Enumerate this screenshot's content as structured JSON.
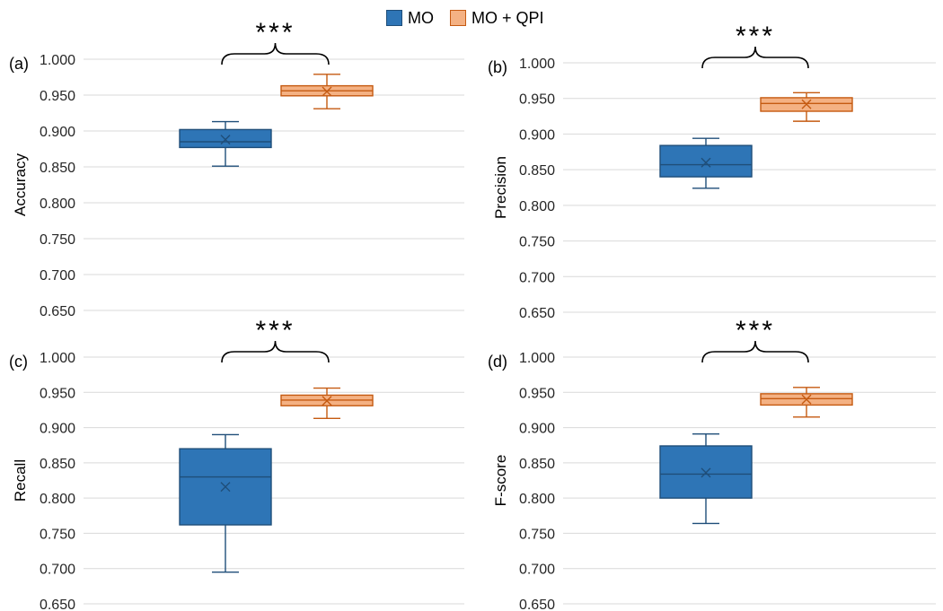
{
  "legend": {
    "items": [
      {
        "label": "MO",
        "fill": "#2E75B6",
        "stroke": "#1F4E79"
      },
      {
        "label": "MO + QPI",
        "fill": "#F4B183",
        "stroke": "#C55A11"
      }
    ]
  },
  "chart_data": [
    {
      "type": "box",
      "panel_label": "(a)",
      "ylabel": "Accuracy",
      "ylim": [
        0.65,
        1.0
      ],
      "yticks": [
        "0.650",
        "0.700",
        "0.750",
        "0.800",
        "0.850",
        "0.900",
        "0.950",
        "1.000"
      ],
      "grid": true,
      "significance": "***",
      "series": [
        {
          "name": "MO",
          "min": 0.851,
          "q1": 0.877,
          "median": 0.885,
          "q3": 0.902,
          "max": 0.913,
          "mean": 0.888
        },
        {
          "name": "MO + QPI",
          "min": 0.931,
          "q1": 0.949,
          "median": 0.956,
          "q3": 0.963,
          "max": 0.979,
          "mean": 0.955
        }
      ]
    },
    {
      "type": "box",
      "panel_label": "(b)",
      "ylabel": "Precision",
      "ylim": [
        0.65,
        1.0
      ],
      "yticks": [
        "0.650",
        "0.700",
        "0.750",
        "0.800",
        "0.850",
        "0.900",
        "0.950",
        "1.000"
      ],
      "grid": true,
      "significance": "***",
      "series": [
        {
          "name": "MO",
          "min": 0.824,
          "q1": 0.84,
          "median": 0.857,
          "q3": 0.884,
          "max": 0.894,
          "mean": 0.86
        },
        {
          "name": "MO + QPI",
          "min": 0.918,
          "q1": 0.932,
          "median": 0.943,
          "q3": 0.951,
          "max": 0.958,
          "mean": 0.942
        }
      ]
    },
    {
      "type": "box",
      "panel_label": "(c)",
      "ylabel": "Recall",
      "ylim": [
        0.65,
        1.0
      ],
      "yticks": [
        "0.650",
        "0.700",
        "0.750",
        "0.800",
        "0.850",
        "0.900",
        "0.950",
        "1.000"
      ],
      "grid": true,
      "significance": "***",
      "series": [
        {
          "name": "MO",
          "min": 0.695,
          "q1": 0.762,
          "median": 0.83,
          "q3": 0.87,
          "max": 0.89,
          "mean": 0.816
        },
        {
          "name": "MO + QPI",
          "min": 0.913,
          "q1": 0.931,
          "median": 0.939,
          "q3": 0.946,
          "max": 0.956,
          "mean": 0.938
        }
      ]
    },
    {
      "type": "box",
      "panel_label": "(d)",
      "ylabel": "F-score",
      "ylim": [
        0.65,
        1.0
      ],
      "yticks": [
        "0.650",
        "0.700",
        "0.750",
        "0.800",
        "0.850",
        "0.900",
        "0.950",
        "1.000"
      ],
      "grid": true,
      "significance": "***",
      "series": [
        {
          "name": "MO",
          "min": 0.764,
          "q1": 0.8,
          "median": 0.834,
          "q3": 0.874,
          "max": 0.891,
          "mean": 0.836
        },
        {
          "name": "MO + QPI",
          "min": 0.915,
          "q1": 0.932,
          "median": 0.941,
          "q3": 0.948,
          "max": 0.957,
          "mean": 0.94
        }
      ]
    }
  ]
}
